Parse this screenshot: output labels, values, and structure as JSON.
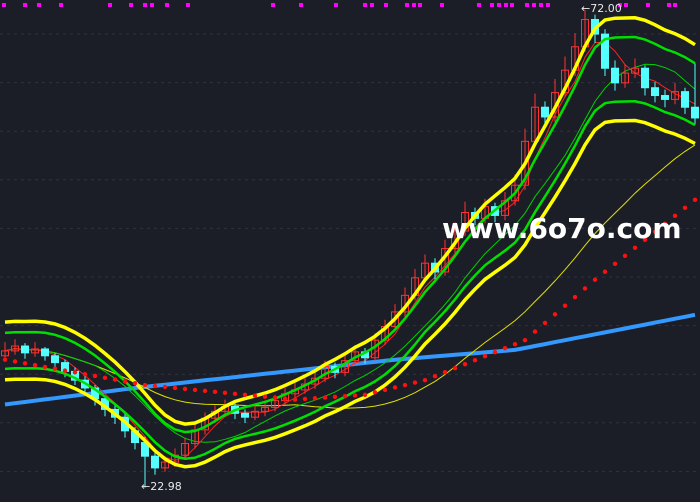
{
  "chart_data": {
    "type": "candlestick",
    "title": "",
    "xlabel": "",
    "ylabel": "",
    "ylim": [
      21.5,
      73.0
    ],
    "grid": true,
    "colors": {
      "background": "#1b1e27",
      "up": "#ff3232",
      "down": "#54ffff",
      "band_outer": "#ffff00",
      "band_inner": "#00e000",
      "dotted": "#ff1010",
      "long_ma": "#3399ff",
      "marker": "#ff00ff"
    },
    "max_label": "72.00",
    "min_label": "22.98",
    "ohlc": [
      [
        36.5,
        37.9,
        36.0,
        37.0
      ],
      [
        37.0,
        38.2,
        36.6,
        37.5
      ],
      [
        37.5,
        37.8,
        36.2,
        36.8
      ],
      [
        36.8,
        37.9,
        36.4,
        37.2
      ],
      [
        37.2,
        37.4,
        36.0,
        36.5
      ],
      [
        36.5,
        36.8,
        35.2,
        35.8
      ],
      [
        35.8,
        36.1,
        34.3,
        34.9
      ],
      [
        34.9,
        35.3,
        33.5,
        34.0
      ],
      [
        34.0,
        34.6,
        32.6,
        33.2
      ],
      [
        33.2,
        33.5,
        31.4,
        32.1
      ],
      [
        32.1,
        32.4,
        30.3,
        31.0
      ],
      [
        31.0,
        31.6,
        29.5,
        30.2
      ],
      [
        30.2,
        30.7,
        28.1,
        28.8
      ],
      [
        28.8,
        29.2,
        26.9,
        27.6
      ],
      [
        27.6,
        28.2,
        22.98,
        26.2
      ],
      [
        26.2,
        26.6,
        24.3,
        25.0
      ],
      [
        25.0,
        26.2,
        24.6,
        25.6
      ],
      [
        25.6,
        27.0,
        25.1,
        26.3
      ],
      [
        26.3,
        28.1,
        25.9,
        27.5
      ],
      [
        27.5,
        29.5,
        27.0,
        28.9
      ],
      [
        28.9,
        30.7,
        28.4,
        30.1
      ],
      [
        30.1,
        31.4,
        29.6,
        30.8
      ],
      [
        30.8,
        32.0,
        30.2,
        31.3
      ],
      [
        31.3,
        31.6,
        30.0,
        30.6
      ],
      [
        30.6,
        31.0,
        29.6,
        30.2
      ],
      [
        30.2,
        31.4,
        29.9,
        30.8
      ],
      [
        30.8,
        31.9,
        30.3,
        31.2
      ],
      [
        31.2,
        32.5,
        30.8,
        31.9
      ],
      [
        31.9,
        33.2,
        31.5,
        32.6
      ],
      [
        32.6,
        33.7,
        32.2,
        33.0
      ],
      [
        33.0,
        34.2,
        32.6,
        33.6
      ],
      [
        33.6,
        34.9,
        33.1,
        34.2
      ],
      [
        34.2,
        36.0,
        33.8,
        35.4
      ],
      [
        35.4,
        35.8,
        34.2,
        34.8
      ],
      [
        34.8,
        36.6,
        34.4,
        36.0
      ],
      [
        36.0,
        37.6,
        35.5,
        36.9
      ],
      [
        36.9,
        37.3,
        35.7,
        36.3
      ],
      [
        36.3,
        38.8,
        36.0,
        38.1
      ],
      [
        38.1,
        40.2,
        37.6,
        39.5
      ],
      [
        39.5,
        41.8,
        39.0,
        41.0
      ],
      [
        41.0,
        43.5,
        40.5,
        42.7
      ],
      [
        42.7,
        45.4,
        42.2,
        44.5
      ],
      [
        44.5,
        46.9,
        44.0,
        46.0
      ],
      [
        46.0,
        46.5,
        44.3,
        45.1
      ],
      [
        45.1,
        48.4,
        44.7,
        47.5
      ],
      [
        47.5,
        50.2,
        47.0,
        49.3
      ],
      [
        49.3,
        52.3,
        48.8,
        51.2
      ],
      [
        51.2,
        51.7,
        49.9,
        50.6
      ],
      [
        50.6,
        52.6,
        50.1,
        51.8
      ],
      [
        51.8,
        52.2,
        50.2,
        50.9
      ],
      [
        50.9,
        53.3,
        50.4,
        52.4
      ],
      [
        52.4,
        55.1,
        51.9,
        54.0
      ],
      [
        54.0,
        59.8,
        53.5,
        58.5
      ],
      [
        58.5,
        63.4,
        58.0,
        62.0
      ],
      [
        62.0,
        62.6,
        60.1,
        61.0
      ],
      [
        61.0,
        64.9,
        60.5,
        63.5
      ],
      [
        63.5,
        67.2,
        63.0,
        65.8
      ],
      [
        65.8,
        69.6,
        65.2,
        68.2
      ],
      [
        68.2,
        72.0,
        67.7,
        71.0
      ],
      [
        71.0,
        71.5,
        68.6,
        69.5
      ],
      [
        69.5,
        70.0,
        65.2,
        66.0
      ],
      [
        66.0,
        66.8,
        63.7,
        64.5
      ],
      [
        64.5,
        66.4,
        64.0,
        65.5
      ],
      [
        65.5,
        67.0,
        65.0,
        66.0
      ],
      [
        66.0,
        66.3,
        63.2,
        64.0
      ],
      [
        64.0,
        64.6,
        62.5,
        63.2
      ],
      [
        63.2,
        63.8,
        62.0,
        62.8
      ],
      [
        62.8,
        64.5,
        62.3,
        63.6
      ],
      [
        63.6,
        64.0,
        61.3,
        62.0
      ],
      [
        62.0,
        66.5,
        60.2,
        60.9
      ]
    ],
    "long_ma": {
      "index": [
        1,
        14,
        40,
        52,
        70
      ],
      "values": [
        31.5,
        33.2,
        36.1,
        37.1,
        40.7
      ]
    },
    "dotted_line": {
      "index": [
        1,
        15,
        30,
        37,
        43,
        53,
        60,
        70
      ],
      "values": [
        36.1,
        33.5,
        32.0,
        32.5,
        34.0,
        38.1,
        44.3,
        52.5
      ]
    }
  },
  "watermark": "www.6o7o.com"
}
